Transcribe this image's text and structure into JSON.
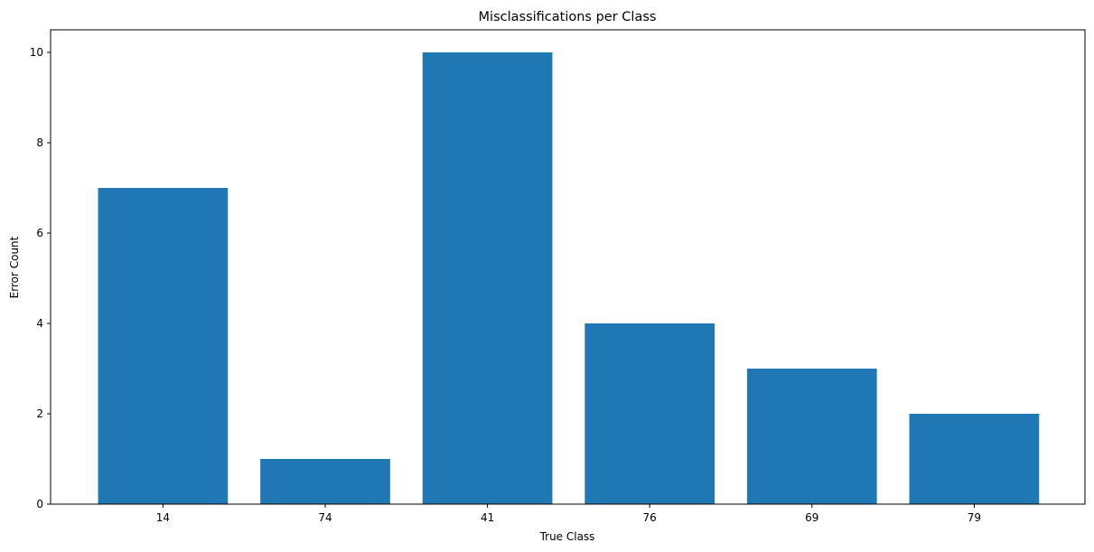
{
  "chart_data": {
    "type": "bar",
    "title": "Misclassifications per Class",
    "xlabel": "True Class",
    "ylabel": "Error Count",
    "categories": [
      "14",
      "74",
      "41",
      "76",
      "69",
      "79"
    ],
    "values": [
      7,
      1,
      10,
      4,
      3,
      2
    ],
    "ylim": [
      0,
      10.5
    ],
    "yticks": [
      "0",
      "2",
      "4",
      "6",
      "8",
      "10"
    ],
    "bar_color": "#1f77b4",
    "grid": false,
    "legend": "none"
  }
}
